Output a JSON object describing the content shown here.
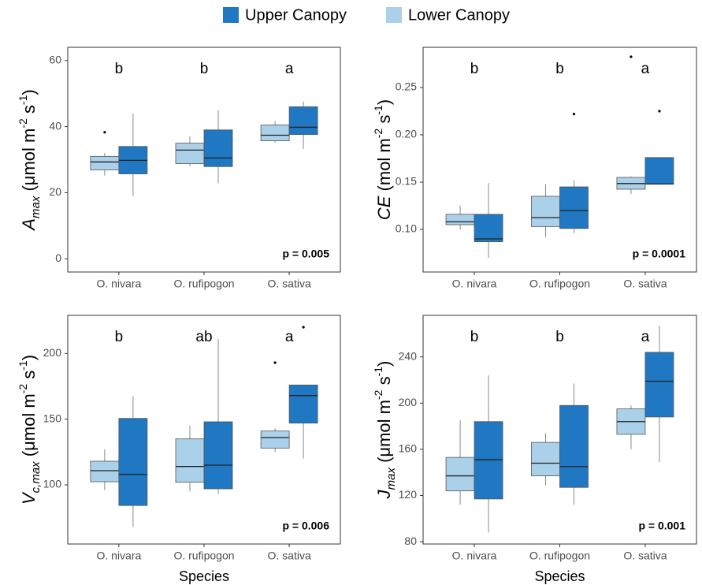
{
  "chart_data": [
    {
      "type": "boxplot",
      "categories": [
        "O. nivara",
        "O. rufipogon",
        "O. sativa"
      ],
      "ylabel": [
        {
          "text": "A",
          "style": "italic"
        },
        {
          "text": "max",
          "style": "sub"
        },
        {
          "text": " (μmol m",
          "style": "normal"
        },
        {
          "text": "-2",
          "style": "sup"
        },
        {
          "text": " s",
          "style": "normal"
        },
        {
          "text": "-1",
          "style": "sup"
        },
        {
          "text": ")",
          "style": "normal"
        }
      ],
      "ylim": [
        -4,
        64
      ],
      "yticks": [
        0,
        20,
        40,
        60
      ],
      "grid": false,
      "annotations": [
        "b",
        "b",
        "a"
      ],
      "p_value_label": "p = 0.005",
      "series": [
        {
          "name": "Lower Canopy",
          "color": "#abd0ea",
          "values": [
            {
              "whislo": 25.2,
              "q1": 26.9,
              "med": 29.3,
              "q3": 31,
              "whishi": 32,
              "fliers": [
                38.3
              ]
            },
            {
              "whislo": 28,
              "q1": 28.8,
              "med": 32.9,
              "q3": 35,
              "whishi": 37,
              "fliers": []
            },
            {
              "whislo": 35.2,
              "q1": 35.7,
              "med": 37.4,
              "q3": 40.5,
              "whishi": 41.7,
              "fliers": []
            }
          ]
        },
        {
          "name": "Upper Canopy",
          "color": "#1f78c1",
          "values": [
            {
              "whislo": 19,
              "q1": 25.7,
              "med": 29.8,
              "q3": 34,
              "whishi": 44,
              "fliers": []
            },
            {
              "whislo": 22.9,
              "q1": 27.9,
              "med": 30.5,
              "q3": 39,
              "whishi": 45,
              "fliers": []
            },
            {
              "whislo": 33.3,
              "q1": 37.6,
              "med": 39.8,
              "q3": 46,
              "whishi": 47.6,
              "fliers": []
            }
          ]
        }
      ]
    },
    {
      "type": "boxplot",
      "categories": [
        "O. nivara",
        "O. rufipogon",
        "O. sativa"
      ],
      "ylabel": [
        {
          "text": "CE",
          "style": "italic"
        },
        {
          "text": " (mol m",
          "style": "normal"
        },
        {
          "text": "-2",
          "style": "sup"
        },
        {
          "text": " s",
          "style": "normal"
        },
        {
          "text": "-1",
          "style": "sup"
        },
        {
          "text": ")",
          "style": "normal"
        }
      ],
      "ylim": [
        0.055,
        0.2925
      ],
      "yticks": [
        {
          "value": 0.1,
          "label": "0.10"
        },
        0.15,
        {
          "value": 0.2,
          "label": "0.20"
        },
        0.25
      ],
      "grid": false,
      "annotations": [
        "b",
        "b",
        "a"
      ],
      "p_value_label": "p = 0.0001",
      "series": [
        {
          "name": "Lower Canopy",
          "color": "#abd0ea",
          "values": [
            {
              "whislo": 0.1,
              "q1": 0.105,
              "med": 0.108,
              "q3": 0.116,
              "whishi": 0.125,
              "fliers": []
            },
            {
              "whislo": 0.092,
              "q1": 0.103,
              "med": 0.1125,
              "q3": 0.135,
              "whishi": 0.1475,
              "fliers": []
            },
            {
              "whislo": 0.1375,
              "q1": 0.1425,
              "med": 0.1485,
              "q3": 0.155,
              "whishi": 0.156,
              "fliers": [
                0.2825
              ]
            }
          ]
        },
        {
          "name": "Upper Canopy",
          "color": "#1f78c1",
          "values": [
            {
              "whislo": 0.07,
              "q1": 0.087,
              "med": 0.09,
              "q3": 0.116,
              "whishi": 0.149,
              "fliers": []
            },
            {
              "whislo": 0.096,
              "q1": 0.101,
              "med": 0.12,
              "q3": 0.145,
              "whishi": 0.152,
              "fliers": [
                0.222
              ]
            },
            {
              "whislo": 0.148,
              "q1": 0.148,
              "med": 0.148,
              "q3": 0.176,
              "whishi": 0.176,
              "fliers": [
                0.225
              ]
            }
          ]
        }
      ]
    },
    {
      "type": "boxplot",
      "categories": [
        "O. nivara",
        "O. rufipogon",
        "O. sativa"
      ],
      "xlabel": "Species",
      "ylabel": [
        {
          "text": "V",
          "style": "italic"
        },
        {
          "text": "c,max",
          "style": "sub"
        },
        {
          "text": " (μmol m",
          "style": "normal"
        },
        {
          "text": "-2",
          "style": "sup"
        },
        {
          "text": " s",
          "style": "normal"
        },
        {
          "text": "-1",
          "style": "sup"
        },
        {
          "text": ")",
          "style": "normal"
        }
      ],
      "ylim": [
        55,
        229
      ],
      "yticks": [
        100,
        150,
        200
      ],
      "grid": false,
      "annotations": [
        "b",
        "ab",
        "a"
      ],
      "p_value_label": "p = 0.006",
      "series": [
        {
          "name": "Lower Canopy",
          "color": "#abd0ea",
          "values": [
            {
              "whislo": 96,
              "q1": 102.4,
              "med": 110.8,
              "q3": 118,
              "whishi": 127,
              "fliers": []
            },
            {
              "whislo": 95,
              "q1": 102,
              "med": 114,
              "q3": 135,
              "whishi": 145,
              "fliers": []
            },
            {
              "whislo": 125,
              "q1": 128,
              "med": 136,
              "q3": 141,
              "whishi": 143,
              "fliers": [
                193
              ]
            }
          ]
        },
        {
          "name": "Upper Canopy",
          "color": "#1f78c1",
          "values": [
            {
              "whislo": 68,
              "q1": 84.3,
              "med": 108,
              "q3": 150.6,
              "whishi": 167.5,
              "fliers": []
            },
            {
              "whislo": 93,
              "q1": 97,
              "med": 115,
              "q3": 148,
              "whishi": 211,
              "fliers": []
            },
            {
              "whislo": 120,
              "q1": 147,
              "med": 168,
              "q3": 176,
              "whishi": 176,
              "fliers": [
                220
              ]
            }
          ]
        }
      ]
    },
    {
      "type": "boxplot",
      "categories": [
        "O. nivara",
        "O. rufipogon",
        "O. sativa"
      ],
      "xlabel": "Species",
      "ylabel": [
        {
          "text": "J",
          "style": "italic"
        },
        {
          "text": "max",
          "style": "sub"
        },
        {
          "text": " (μmol m",
          "style": "normal"
        },
        {
          "text": "-2",
          "style": "sup"
        },
        {
          "text": " s",
          "style": "normal"
        },
        {
          "text": "-1",
          "style": "sup"
        },
        {
          "text": ")",
          "style": "normal"
        }
      ],
      "ylim": [
        78,
        276
      ],
      "yticks": [
        80,
        120,
        160,
        200,
        240
      ],
      "grid": false,
      "annotations": [
        "b",
        "b",
        "a"
      ],
      "p_value_label": "p = 0.001",
      "series": [
        {
          "name": "Lower Canopy",
          "color": "#abd0ea",
          "values": [
            {
              "whislo": 112,
              "q1": 124,
              "med": 137,
              "q3": 153,
              "whishi": 185,
              "fliers": []
            },
            {
              "whislo": 129,
              "q1": 137,
              "med": 148,
              "q3": 166,
              "whishi": 174,
              "fliers": []
            },
            {
              "whislo": 160,
              "q1": 173,
              "med": 184,
              "q3": 195,
              "whishi": 198,
              "fliers": []
            }
          ]
        },
        {
          "name": "Upper Canopy",
          "color": "#1f78c1",
          "values": [
            {
              "whislo": 88,
              "q1": 117,
              "med": 151,
              "q3": 184,
              "whishi": 224,
              "fliers": []
            },
            {
              "whislo": 112,
              "q1": 127,
              "med": 145,
              "q3": 198,
              "whishi": 217,
              "fliers": []
            },
            {
              "whislo": 149,
              "q1": 188,
              "med": 219,
              "q3": 244,
              "whishi": 267,
              "fliers": []
            }
          ]
        }
      ]
    }
  ]
}
